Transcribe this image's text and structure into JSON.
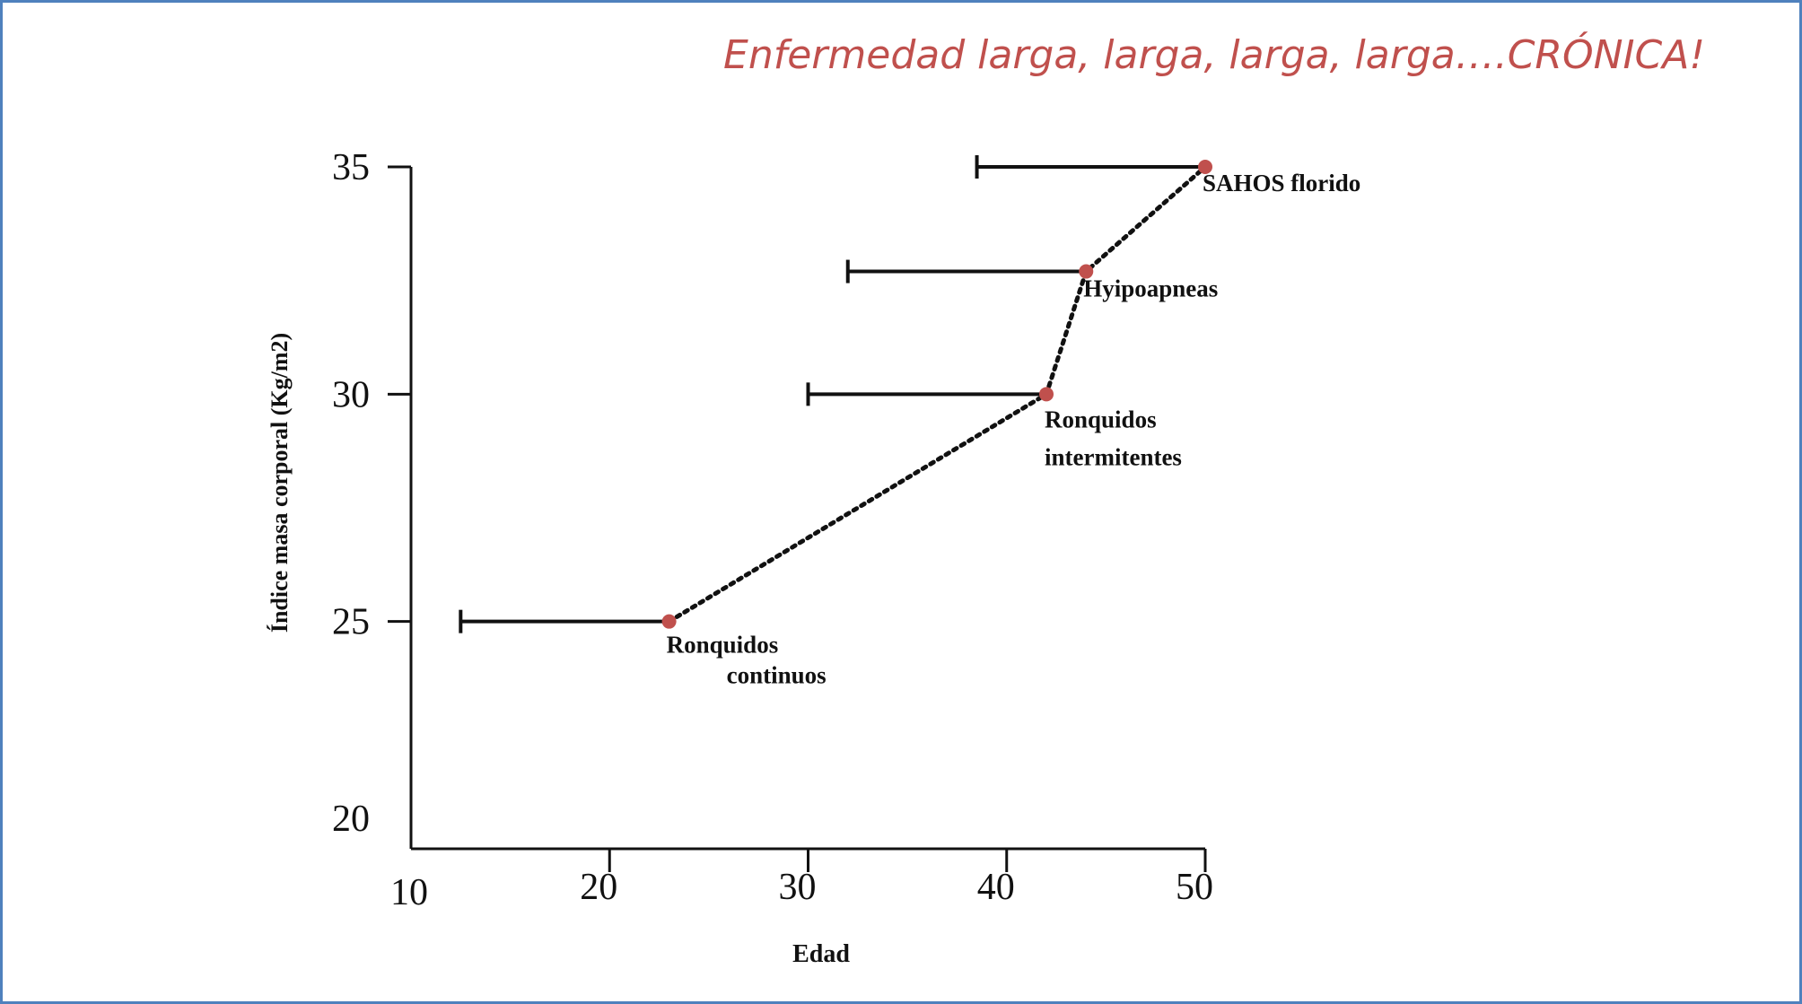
{
  "slide": {
    "title": "Enfermedad larga, larga, larga, larga….CRÓNICA!"
  },
  "colors": {
    "title": "#c0504d",
    "point": "#c0504d",
    "axis": "#111111",
    "frame": "#4f81bd"
  },
  "chart_data": {
    "type": "scatter",
    "xlabel": "Edad",
    "ylabel": "Índice masa corporal (Kg/m2)",
    "xlim": [
      10,
      50
    ],
    "ylim": [
      20,
      35
    ],
    "x_ticks": [
      10,
      20,
      30,
      40,
      50
    ],
    "y_ticks": [
      20,
      25,
      30,
      35
    ],
    "x_tick_labels": [
      "10",
      "20",
      "30",
      "40",
      "50"
    ],
    "y_tick_labels": [
      "20",
      "25",
      "30",
      "35"
    ],
    "grid": false,
    "connector": "dotted",
    "points": [
      {
        "x": 23,
        "y": 25,
        "range_min_x": 12.5,
        "label_lines": [
          "Ronquidos",
          "continuos"
        ]
      },
      {
        "x": 42,
        "y": 30,
        "range_min_x": 30,
        "label_lines": [
          "Ronquidos",
          "intermitentes"
        ]
      },
      {
        "x": 44,
        "y": 32.7,
        "range_min_x": 32,
        "label_lines": [
          "Hyipoapneas"
        ]
      },
      {
        "x": 50,
        "y": 35,
        "range_min_x": 38.5,
        "label_lines": [
          "SAHOS florido"
        ]
      }
    ]
  }
}
